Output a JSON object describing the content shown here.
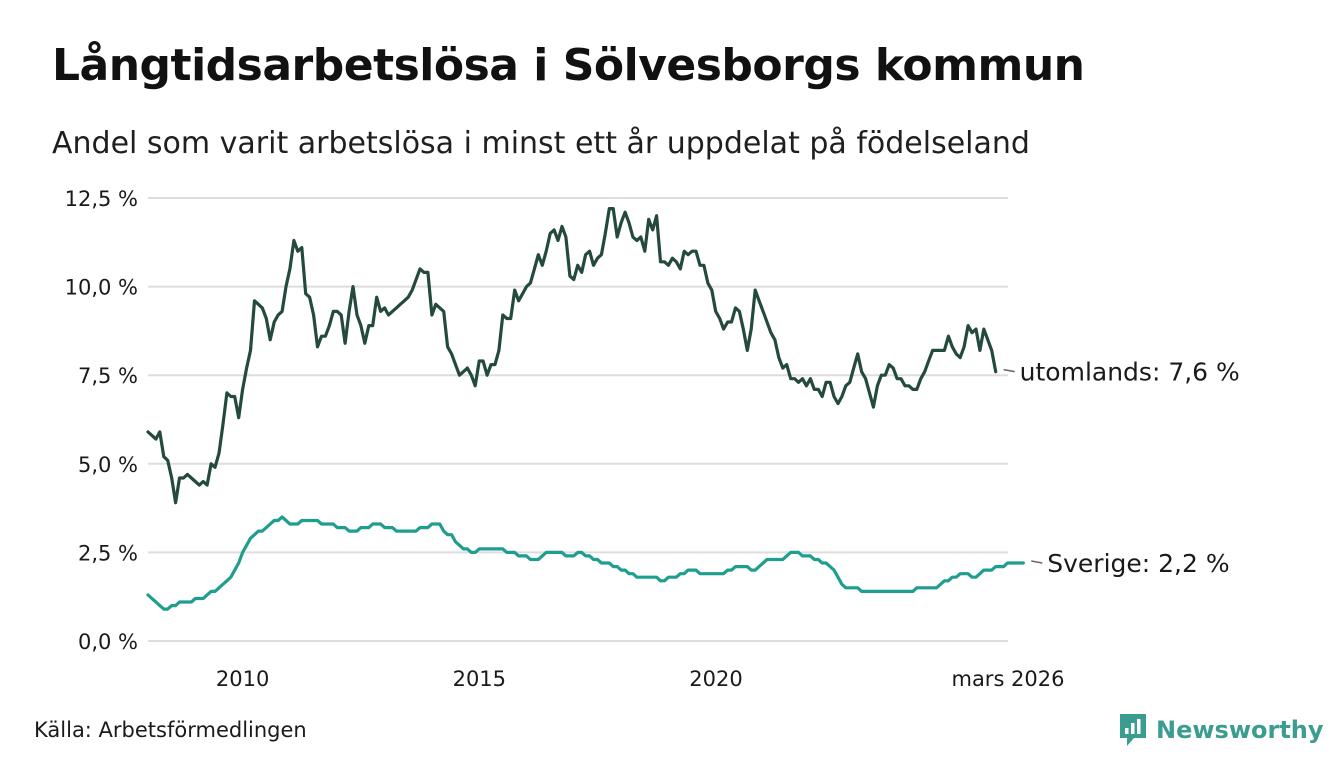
{
  "title": "Långtidsarbetslösa i Sölvesborgs kommun",
  "subtitle": "Andel som varit arbetslösa i minst ett år uppdelat på födelseland",
  "source": "Källa: Arbetsförmedlingen",
  "brand": "Newsworthy",
  "chart_data": {
    "type": "line",
    "title": "Långtidsarbetslösa i Sölvesborgs kommun",
    "xlabel": "",
    "ylabel": "",
    "x_start": 2008.0,
    "x_step": 0.0833,
    "xlim": [
      2008.0,
      2026.17
    ],
    "ylim": [
      0,
      12.5
    ],
    "y_ticks": [
      0,
      2.5,
      5,
      7.5,
      10,
      12.5
    ],
    "y_tick_labels": [
      "0,0 %",
      "2,5 %",
      "5,0 %",
      "7,5 %",
      "10,0 %",
      "12,5 %"
    ],
    "x_ticks": [
      2010,
      2015,
      2020,
      2026.17
    ],
    "x_tick_labels": [
      "2010",
      "2015",
      "2020",
      "mars 2026"
    ],
    "grid": true,
    "series": [
      {
        "name": "utomlands",
        "end_label": "utomlands: 7,6 %",
        "color": "#244a40",
        "values": [
          5.9,
          5.8,
          5.7,
          5.9,
          5.2,
          5.1,
          4.6,
          3.9,
          4.6,
          4.6,
          4.7,
          4.6,
          4.5,
          4.4,
          4.5,
          4.4,
          5.0,
          4.9,
          5.3,
          6.1,
          7.0,
          6.9,
          6.9,
          6.3,
          7.1,
          7.7,
          8.2,
          9.6,
          9.5,
          9.4,
          9.1,
          8.5,
          9.0,
          9.2,
          9.3,
          10.0,
          10.5,
          11.3,
          11.0,
          11.1,
          9.8,
          9.7,
          9.2,
          8.3,
          8.6,
          8.6,
          8.9,
          9.3,
          9.3,
          9.2,
          8.4,
          9.3,
          10.0,
          9.2,
          8.9,
          8.4,
          8.9,
          8.9,
          9.7,
          9.3,
          9.4,
          9.2,
          9.3,
          9.4,
          9.5,
          9.6,
          9.7,
          9.9,
          10.2,
          10.5,
          10.4,
          10.4,
          9.2,
          9.5,
          9.4,
          9.3,
          8.3,
          8.1,
          7.8,
          7.5,
          7.6,
          7.7,
          7.5,
          7.2,
          7.9,
          7.9,
          7.5,
          7.8,
          7.8,
          8.2,
          9.2,
          9.1,
          9.1,
          9.9,
          9.6,
          9.8,
          10.0,
          10.1,
          10.5,
          10.9,
          10.6,
          11.0,
          11.5,
          11.6,
          11.3,
          11.7,
          11.4,
          10.3,
          10.2,
          10.6,
          10.4,
          10.9,
          11.0,
          10.6,
          10.8,
          10.9,
          11.5,
          12.2,
          12.2,
          11.4,
          11.8,
          12.1,
          11.8,
          11.4,
          11.3,
          11.4,
          11.0,
          11.9,
          11.6,
          12.0,
          10.7,
          10.7,
          10.6,
          10.8,
          10.7,
          10.5,
          11.0,
          10.9,
          11.0,
          11.0,
          10.6,
          10.6,
          10.1,
          9.9,
          9.3,
          9.1,
          8.8,
          9.0,
          9.0,
          9.4,
          9.3,
          8.8,
          8.2,
          8.8,
          9.9,
          9.6,
          9.3,
          9.0,
          8.7,
          8.5,
          8.0,
          7.7,
          7.8,
          7.4,
          7.4,
          7.3,
          7.4,
          7.2,
          7.4,
          7.1,
          7.1,
          6.9,
          7.3,
          7.3,
          6.9,
          6.7,
          6.9,
          7.2,
          7.3,
          7.7,
          8.1,
          7.6,
          7.4,
          7.0,
          6.6,
          7.2,
          7.5,
          7.5,
          7.8,
          7.7,
          7.4,
          7.4,
          7.2,
          7.2,
          7.1,
          7.1,
          7.4,
          7.6,
          7.9,
          8.2,
          8.2,
          8.2,
          8.2,
          8.6,
          8.3,
          8.1,
          8.0,
          8.3,
          8.9,
          8.7,
          8.8,
          8.2,
          8.8,
          8.5,
          8.2,
          7.6
        ]
      },
      {
        "name": "Sverige",
        "end_label": "Sverige: 2,2 %",
        "color": "#1f9e8f",
        "values": [
          1.3,
          1.2,
          1.1,
          1.0,
          0.9,
          0.9,
          1.0,
          1.0,
          1.1,
          1.1,
          1.1,
          1.1,
          1.2,
          1.2,
          1.2,
          1.3,
          1.4,
          1.4,
          1.5,
          1.6,
          1.7,
          1.8,
          2.0,
          2.2,
          2.5,
          2.7,
          2.9,
          3.0,
          3.1,
          3.1,
          3.2,
          3.3,
          3.4,
          3.4,
          3.5,
          3.4,
          3.3,
          3.3,
          3.3,
          3.4,
          3.4,
          3.4,
          3.4,
          3.4,
          3.3,
          3.3,
          3.3,
          3.3,
          3.2,
          3.2,
          3.2,
          3.1,
          3.1,
          3.1,
          3.2,
          3.2,
          3.2,
          3.3,
          3.3,
          3.3,
          3.2,
          3.2,
          3.2,
          3.1,
          3.1,
          3.1,
          3.1,
          3.1,
          3.1,
          3.2,
          3.2,
          3.2,
          3.3,
          3.3,
          3.3,
          3.1,
          3.0,
          3.0,
          2.8,
          2.7,
          2.6,
          2.6,
          2.5,
          2.5,
          2.6,
          2.6,
          2.6,
          2.6,
          2.6,
          2.6,
          2.6,
          2.5,
          2.5,
          2.5,
          2.4,
          2.4,
          2.4,
          2.3,
          2.3,
          2.3,
          2.4,
          2.5,
          2.5,
          2.5,
          2.5,
          2.5,
          2.4,
          2.4,
          2.4,
          2.5,
          2.5,
          2.4,
          2.4,
          2.3,
          2.3,
          2.2,
          2.2,
          2.2,
          2.1,
          2.1,
          2.0,
          2.0,
          1.9,
          1.9,
          1.8,
          1.8,
          1.8,
          1.8,
          1.8,
          1.8,
          1.7,
          1.7,
          1.8,
          1.8,
          1.8,
          1.9,
          1.9,
          2.0,
          2.0,
          2.0,
          1.9,
          1.9,
          1.9,
          1.9,
          1.9,
          1.9,
          1.9,
          2.0,
          2.0,
          2.1,
          2.1,
          2.1,
          2.1,
          2.0,
          2.0,
          2.1,
          2.2,
          2.3,
          2.3,
          2.3,
          2.3,
          2.3,
          2.4,
          2.5,
          2.5,
          2.5,
          2.4,
          2.4,
          2.4,
          2.3,
          2.3,
          2.2,
          2.2,
          2.1,
          2.0,
          1.8,
          1.6,
          1.5,
          1.5,
          1.5,
          1.5,
          1.4,
          1.4,
          1.4,
          1.4,
          1.4,
          1.4,
          1.4,
          1.4,
          1.4,
          1.4,
          1.4,
          1.4,
          1.4,
          1.4,
          1.5,
          1.5,
          1.5,
          1.5,
          1.5,
          1.5,
          1.6,
          1.7,
          1.7,
          1.8,
          1.8,
          1.9,
          1.9,
          1.9,
          1.8,
          1.8,
          1.9,
          2.0,
          2.0,
          2.0,
          2.1,
          2.1,
          2.1,
          2.2,
          2.2,
          2.2,
          2.2,
          2.2
        ]
      }
    ]
  }
}
